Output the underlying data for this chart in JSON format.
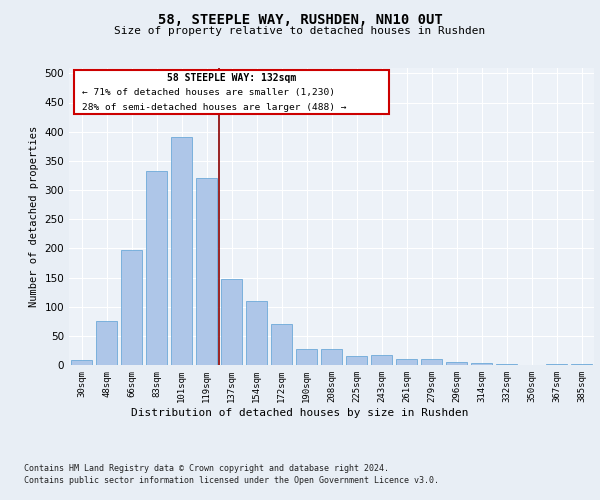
{
  "title": "58, STEEPLE WAY, RUSHDEN, NN10 0UT",
  "subtitle": "Size of property relative to detached houses in Rushden",
  "xlabel": "Distribution of detached houses by size in Rushden",
  "ylabel": "Number of detached properties",
  "categories": [
    "30sqm",
    "48sqm",
    "66sqm",
    "83sqm",
    "101sqm",
    "119sqm",
    "137sqm",
    "154sqm",
    "172sqm",
    "190sqm",
    "208sqm",
    "225sqm",
    "243sqm",
    "261sqm",
    "279sqm",
    "296sqm",
    "314sqm",
    "332sqm",
    "350sqm",
    "367sqm",
    "385sqm"
  ],
  "values": [
    8,
    75,
    197,
    333,
    390,
    320,
    148,
    110,
    70,
    28,
    28,
    15,
    18,
    10,
    10,
    5,
    3,
    1,
    0,
    1,
    1
  ],
  "bar_color": "#aec6e8",
  "bar_edge_color": "#5a9fd4",
  "annotation_text_line1": "58 STEEPLE WAY: 132sqm",
  "annotation_text_line2": "← 71% of detached houses are smaller (1,230)",
  "annotation_text_line3": "28% of semi-detached houses are larger (488) →",
  "annotation_box_color": "#ffffff",
  "annotation_box_edge_color": "#cc0000",
  "vline_color": "#8b0000",
  "vline_x": 5.5,
  "footer_line1": "Contains HM Land Registry data © Crown copyright and database right 2024.",
  "footer_line2": "Contains public sector information licensed under the Open Government Licence v3.0.",
  "bg_color": "#e8eef5",
  "plot_bg_color": "#edf2f8",
  "ylim": [
    0,
    510
  ],
  "yticks": [
    0,
    50,
    100,
    150,
    200,
    250,
    300,
    350,
    400,
    450,
    500
  ]
}
